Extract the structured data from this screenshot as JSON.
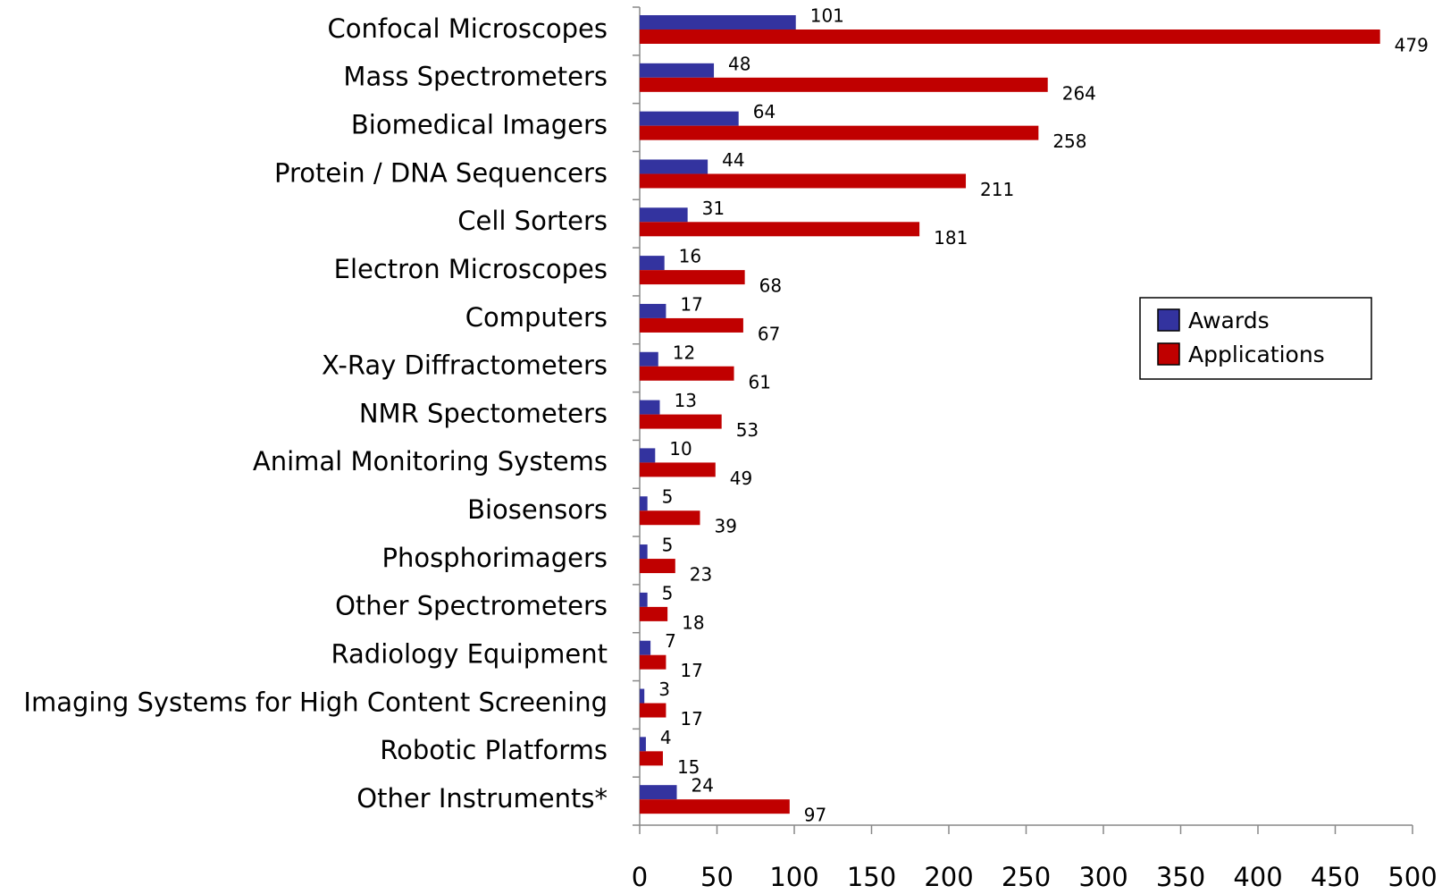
{
  "chart_data": {
    "type": "hbar",
    "categories": [
      "Confocal Microscopes",
      "Mass Spectrometers",
      "Biomedical Imagers",
      "Protein / DNA Sequencers",
      "Cell Sorters",
      "Electron Microscopes",
      "Computers",
      "X-Ray Diffractometers",
      "NMR Spectometers",
      "Animal Monitoring Systems",
      "Biosensors",
      "Phosphorimagers",
      "Other Spectrometers",
      "Radiology Equipment",
      "Imaging Systems for High Content Screening",
      "Robotic Platforms",
      "Other Instruments*"
    ],
    "series": [
      {
        "name": "Awards",
        "color": "#33339f",
        "values": [
          101,
          48,
          64,
          44,
          31,
          16,
          17,
          12,
          13,
          10,
          5,
          5,
          5,
          7,
          3,
          4,
          24
        ]
      },
      {
        "name": "Applications",
        "color": "#c00000",
        "values": [
          479,
          264,
          258,
          211,
          181,
          68,
          67,
          61,
          53,
          49,
          39,
          23,
          18,
          17,
          17,
          15,
          97
        ]
      }
    ],
    "xlim": [
      0,
      500
    ],
    "xticks": [
      0,
      50,
      100,
      150,
      200,
      250,
      300,
      350,
      400,
      450,
      500
    ],
    "grid": false,
    "legend": "right"
  }
}
